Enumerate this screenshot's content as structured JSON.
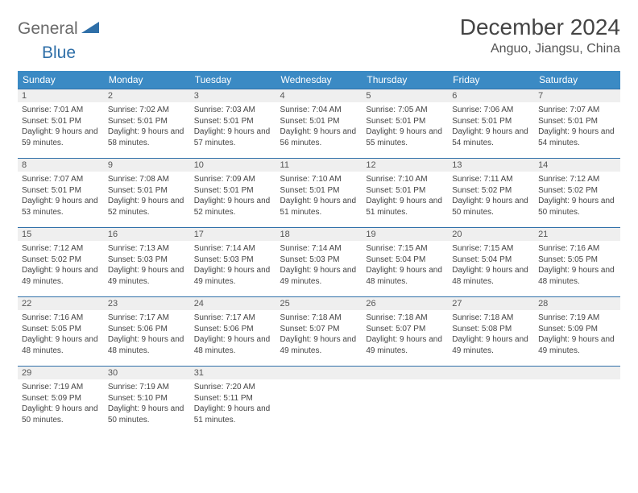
{
  "logo": {
    "part1": "General",
    "part2": "Blue"
  },
  "title": "December 2024",
  "location": "Anguo, Jiangsu, China",
  "colors": {
    "header_bg": "#3b8ac4",
    "header_fg": "#ffffff",
    "row_border": "#2f6fa8",
    "daynum_bg": "#efefef",
    "logo_gray": "#6a6a6a",
    "logo_blue": "#2f6fa8"
  },
  "dayHeaders": [
    "Sunday",
    "Monday",
    "Tuesday",
    "Wednesday",
    "Thursday",
    "Friday",
    "Saturday"
  ],
  "weeks": [
    [
      {
        "n": "1",
        "sr": "7:01 AM",
        "ss": "5:01 PM",
        "dl": "9 hours and 59 minutes."
      },
      {
        "n": "2",
        "sr": "7:02 AM",
        "ss": "5:01 PM",
        "dl": "9 hours and 58 minutes."
      },
      {
        "n": "3",
        "sr": "7:03 AM",
        "ss": "5:01 PM",
        "dl": "9 hours and 57 minutes."
      },
      {
        "n": "4",
        "sr": "7:04 AM",
        "ss": "5:01 PM",
        "dl": "9 hours and 56 minutes."
      },
      {
        "n": "5",
        "sr": "7:05 AM",
        "ss": "5:01 PM",
        "dl": "9 hours and 55 minutes."
      },
      {
        "n": "6",
        "sr": "7:06 AM",
        "ss": "5:01 PM",
        "dl": "9 hours and 54 minutes."
      },
      {
        "n": "7",
        "sr": "7:07 AM",
        "ss": "5:01 PM",
        "dl": "9 hours and 54 minutes."
      }
    ],
    [
      {
        "n": "8",
        "sr": "7:07 AM",
        "ss": "5:01 PM",
        "dl": "9 hours and 53 minutes."
      },
      {
        "n": "9",
        "sr": "7:08 AM",
        "ss": "5:01 PM",
        "dl": "9 hours and 52 minutes."
      },
      {
        "n": "10",
        "sr": "7:09 AM",
        "ss": "5:01 PM",
        "dl": "9 hours and 52 minutes."
      },
      {
        "n": "11",
        "sr": "7:10 AM",
        "ss": "5:01 PM",
        "dl": "9 hours and 51 minutes."
      },
      {
        "n": "12",
        "sr": "7:10 AM",
        "ss": "5:01 PM",
        "dl": "9 hours and 51 minutes."
      },
      {
        "n": "13",
        "sr": "7:11 AM",
        "ss": "5:02 PM",
        "dl": "9 hours and 50 minutes."
      },
      {
        "n": "14",
        "sr": "7:12 AM",
        "ss": "5:02 PM",
        "dl": "9 hours and 50 minutes."
      }
    ],
    [
      {
        "n": "15",
        "sr": "7:12 AM",
        "ss": "5:02 PM",
        "dl": "9 hours and 49 minutes."
      },
      {
        "n": "16",
        "sr": "7:13 AM",
        "ss": "5:03 PM",
        "dl": "9 hours and 49 minutes."
      },
      {
        "n": "17",
        "sr": "7:14 AM",
        "ss": "5:03 PM",
        "dl": "9 hours and 49 minutes."
      },
      {
        "n": "18",
        "sr": "7:14 AM",
        "ss": "5:03 PM",
        "dl": "9 hours and 49 minutes."
      },
      {
        "n": "19",
        "sr": "7:15 AM",
        "ss": "5:04 PM",
        "dl": "9 hours and 48 minutes."
      },
      {
        "n": "20",
        "sr": "7:15 AM",
        "ss": "5:04 PM",
        "dl": "9 hours and 48 minutes."
      },
      {
        "n": "21",
        "sr": "7:16 AM",
        "ss": "5:05 PM",
        "dl": "9 hours and 48 minutes."
      }
    ],
    [
      {
        "n": "22",
        "sr": "7:16 AM",
        "ss": "5:05 PM",
        "dl": "9 hours and 48 minutes."
      },
      {
        "n": "23",
        "sr": "7:17 AM",
        "ss": "5:06 PM",
        "dl": "9 hours and 48 minutes."
      },
      {
        "n": "24",
        "sr": "7:17 AM",
        "ss": "5:06 PM",
        "dl": "9 hours and 48 minutes."
      },
      {
        "n": "25",
        "sr": "7:18 AM",
        "ss": "5:07 PM",
        "dl": "9 hours and 49 minutes."
      },
      {
        "n": "26",
        "sr": "7:18 AM",
        "ss": "5:07 PM",
        "dl": "9 hours and 49 minutes."
      },
      {
        "n": "27",
        "sr": "7:18 AM",
        "ss": "5:08 PM",
        "dl": "9 hours and 49 minutes."
      },
      {
        "n": "28",
        "sr": "7:19 AM",
        "ss": "5:09 PM",
        "dl": "9 hours and 49 minutes."
      }
    ],
    [
      {
        "n": "29",
        "sr": "7:19 AM",
        "ss": "5:09 PM",
        "dl": "9 hours and 50 minutes."
      },
      {
        "n": "30",
        "sr": "7:19 AM",
        "ss": "5:10 PM",
        "dl": "9 hours and 50 minutes."
      },
      {
        "n": "31",
        "sr": "7:20 AM",
        "ss": "5:11 PM",
        "dl": "9 hours and 51 minutes."
      },
      null,
      null,
      null,
      null
    ]
  ],
  "labels": {
    "sunrise": "Sunrise:",
    "sunset": "Sunset:",
    "daylight": "Daylight:"
  }
}
